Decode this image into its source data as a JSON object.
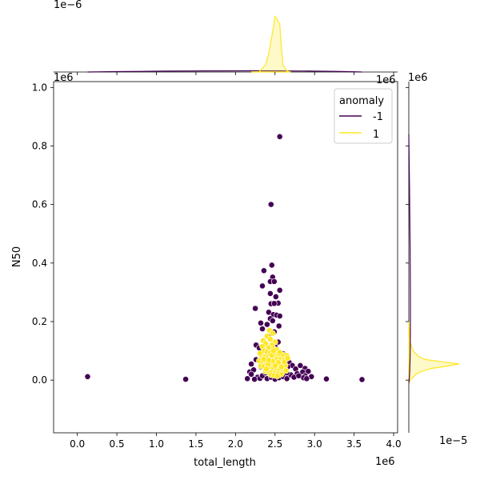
{
  "chart_data": {
    "type": "scatter",
    "xlabel": "total_length",
    "ylabel": "N50",
    "x_offset_label": "1e6",
    "y_offset_label": "1e6",
    "top_marginal_offset_label": "1e−6",
    "right_marginal_offset_label": "1e−5",
    "right_marginal_x_offset_label": "1e6",
    "top_marginal_y_offset_label": "1e6",
    "xlim": [
      -300000,
      4050000
    ],
    "ylim": [
      -180000,
      1020000
    ],
    "x_ticks": [
      0,
      500000,
      1000000,
      1500000,
      2000000,
      2500000,
      3000000,
      3500000,
      4000000
    ],
    "x_tick_labels": [
      "0.0",
      "0.5",
      "1.0",
      "1.5",
      "2.0",
      "2.5",
      "3.0",
      "3.5",
      "4.0"
    ],
    "y_ticks": [
      0,
      200000,
      400000,
      600000,
      800000,
      1000000
    ],
    "y_tick_labels": [
      "0.0",
      "0.2",
      "0.4",
      "0.6",
      "0.8",
      "1.0"
    ],
    "legend": {
      "title": "anomaly",
      "placement": "top-right",
      "entries": [
        {
          "label": "-1",
          "color": "#440154"
        },
        {
          "label": "1",
          "color": "#fde725"
        }
      ]
    },
    "series": [
      {
        "name": "-1",
        "color": "#440154",
        "points": [
          [
            130000,
            12000
          ],
          [
            1370000,
            3000
          ],
          [
            3150000,
            4000
          ],
          [
            3600000,
            2000
          ],
          [
            2560000,
            832000
          ],
          [
            2450000,
            600000
          ],
          [
            2460000,
            393000
          ],
          [
            2360000,
            374000
          ],
          [
            2470000,
            352000
          ],
          [
            2440000,
            337000
          ],
          [
            2490000,
            337000
          ],
          [
            2340000,
            322000
          ],
          [
            2560000,
            307000
          ],
          [
            2440000,
            296000
          ],
          [
            2510000,
            285000
          ],
          [
            2540000,
            263000
          ],
          [
            2450000,
            261000
          ],
          [
            2490000,
            262000
          ],
          [
            2250000,
            245000
          ],
          [
            2420000,
            232000
          ],
          [
            2480000,
            224000
          ],
          [
            2520000,
            222000
          ],
          [
            2560000,
            219000
          ],
          [
            2440000,
            210000
          ],
          [
            2470000,
            203000
          ],
          [
            2320000,
            195000
          ],
          [
            2400000,
            190000
          ],
          [
            2550000,
            185000
          ],
          [
            2340000,
            175000
          ],
          [
            2490000,
            165000
          ],
          [
            2420000,
            150000
          ],
          [
            2260000,
            120000
          ],
          [
            2300000,
            110000
          ],
          [
            2380000,
            100000
          ],
          [
            2600000,
            90000
          ],
          [
            2520000,
            80000
          ],
          [
            2560000,
            75000
          ],
          [
            2620000,
            65000
          ],
          [
            2680000,
            60000
          ],
          [
            2720000,
            50000
          ],
          [
            2660000,
            45000
          ],
          [
            2820000,
            50000
          ],
          [
            2880000,
            40000
          ],
          [
            2760000,
            38000
          ],
          [
            2850000,
            28000
          ],
          [
            2780000,
            22000
          ],
          [
            2920000,
            30000
          ],
          [
            2880000,
            15000
          ],
          [
            2960000,
            12000
          ],
          [
            2860000,
            8000
          ],
          [
            2900000,
            5000
          ],
          [
            2180000,
            28000
          ],
          [
            2230000,
            35000
          ],
          [
            2200000,
            20000
          ],
          [
            2280000,
            10000
          ],
          [
            2150000,
            5000
          ],
          [
            2240000,
            3000
          ],
          [
            2310000,
            6000
          ],
          [
            2340000,
            15000
          ],
          [
            2400000,
            5000
          ],
          [
            2450000,
            10000
          ],
          [
            2500000,
            3000
          ],
          [
            2550000,
            8000
          ],
          [
            2600000,
            12000
          ],
          [
            2650000,
            5000
          ],
          [
            2700000,
            18000
          ],
          [
            2380000,
            25000
          ],
          [
            2430000,
            40000
          ],
          [
            2600000,
            30000
          ],
          [
            2650000,
            25000
          ],
          [
            2320000,
            45000
          ],
          [
            2200000,
            55000
          ],
          [
            2260000,
            70000
          ],
          [
            2480000,
            60000
          ],
          [
            2740000,
            10000
          ],
          [
            2800000,
            15000
          ],
          [
            2360000,
            85000
          ],
          [
            2420000,
            95000
          ],
          [
            2500000,
            115000
          ],
          [
            2540000,
            130000
          ]
        ]
      },
      {
        "name": "1",
        "color": "#fde725",
        "points": [
          [
            2430000,
            170000
          ],
          [
            2470000,
            160000
          ],
          [
            2400000,
            150000
          ],
          [
            2440000,
            140000
          ],
          [
            2350000,
            135000
          ],
          [
            2500000,
            130000
          ],
          [
            2380000,
            125000
          ],
          [
            2460000,
            120000
          ],
          [
            2340000,
            115000
          ],
          [
            2420000,
            110000
          ],
          [
            2480000,
            108000
          ],
          [
            2520000,
            104000
          ],
          [
            2360000,
            100000
          ],
          [
            2400000,
            96000
          ],
          [
            2440000,
            92000
          ],
          [
            2500000,
            90000
          ],
          [
            2550000,
            88000
          ],
          [
            2600000,
            86000
          ],
          [
            2650000,
            84000
          ],
          [
            2330000,
            82000
          ],
          [
            2370000,
            80000
          ],
          [
            2410000,
            78000
          ],
          [
            2450000,
            76000
          ],
          [
            2490000,
            74000
          ],
          [
            2530000,
            72000
          ],
          [
            2570000,
            70000
          ],
          [
            2610000,
            68000
          ],
          [
            2300000,
            66000
          ],
          [
            2350000,
            64000
          ],
          [
            2390000,
            62000
          ],
          [
            2430000,
            60000
          ],
          [
            2470000,
            58000
          ],
          [
            2510000,
            56000
          ],
          [
            2550000,
            54000
          ],
          [
            2590000,
            52000
          ],
          [
            2630000,
            50000
          ],
          [
            2320000,
            48000
          ],
          [
            2360000,
            46000
          ],
          [
            2400000,
            44000
          ],
          [
            2440000,
            42000
          ],
          [
            2480000,
            40000
          ],
          [
            2520000,
            38000
          ],
          [
            2560000,
            36000
          ],
          [
            2600000,
            34000
          ],
          [
            2640000,
            32000
          ],
          [
            2380000,
            30000
          ],
          [
            2420000,
            28000
          ],
          [
            2460000,
            26000
          ],
          [
            2500000,
            24000
          ],
          [
            2540000,
            22000
          ],
          [
            2580000,
            20000
          ],
          [
            2450000,
            18000
          ],
          [
            2490000,
            16000
          ],
          [
            2530000,
            14000
          ],
          [
            2410000,
            55000
          ],
          [
            2470000,
            65000
          ],
          [
            2540000,
            60000
          ],
          [
            2580000,
            45000
          ],
          [
            2620000,
            62000
          ],
          [
            2660000,
            75000
          ],
          [
            2360000,
            72000
          ],
          [
            2310000,
            92000
          ],
          [
            2460000,
            85000
          ],
          [
            2500000,
            50000
          ],
          [
            2560000,
            95000
          ],
          [
            2420000,
            68000
          ],
          [
            2480000,
            100000
          ],
          [
            2390000,
            38000
          ]
        ]
      }
    ],
    "top_marginal": {
      "type": "area",
      "description_series": "1",
      "x": [
        2200000,
        2300000,
        2380000,
        2420000,
        2450000,
        2480000,
        2500000,
        2520000,
        2540000,
        2560000,
        2580000,
        2600000,
        2650000,
        2700000
      ],
      "y": [
        0.0,
        0.02,
        0.35,
        0.9,
        1.55,
        2.2,
        2.75,
        2.65,
        2.5,
        2.35,
        1.2,
        0.35,
        0.05,
        0.0
      ],
      "ylim": [
        0,
        3.0
      ],
      "neg_series_peak": 0.04
    },
    "right_marginal": {
      "type": "area",
      "description_series": "1",
      "y": [
        -10000,
        0,
        20000,
        30000,
        40000,
        50000,
        55000,
        60000,
        70000,
        80000,
        100000,
        130000,
        170000,
        200000
      ],
      "x": [
        0.0,
        0.05,
        0.25,
        0.45,
        0.8,
        1.45,
        1.75,
        1.35,
        0.6,
        0.35,
        0.15,
        0.05,
        0.02,
        0.0
      ],
      "xlim": [
        0,
        2.0
      ]
    }
  }
}
